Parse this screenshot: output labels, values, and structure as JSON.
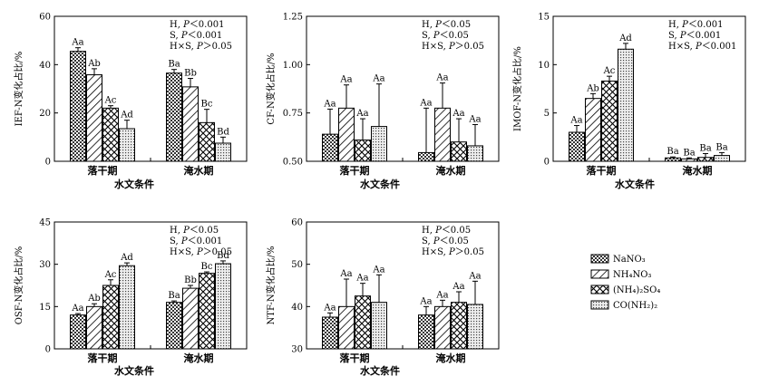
{
  "legend": [
    {
      "key": "nano3",
      "label": "NaNO₃",
      "pattern": "checker"
    },
    {
      "key": "nh4no3",
      "label": "NH₄NO₃",
      "pattern": "hatch"
    },
    {
      "key": "nh4so4",
      "label": "(NH₄)₂SO₄",
      "pattern": "cross"
    },
    {
      "key": "urea",
      "label": "CO(NH₂)₂",
      "pattern": "dots"
    }
  ],
  "chart_data": [
    {
      "type": "bar",
      "ylabel": "IEF-N变化占比/%",
      "xlabel": "水文条件",
      "categories": [
        "落干期",
        "淹水期"
      ],
      "ylim": [
        0,
        60
      ],
      "yticks": [
        0,
        20,
        40,
        60
      ],
      "stats": [
        "H, P＜0.001",
        "S, P＜0.001",
        "H×S, P＞0.05"
      ],
      "series": [
        {
          "values": [
            45.5,
            36.5
          ],
          "err": [
            1.5,
            1.5
          ],
          "labels": [
            "Aa",
            "Ba"
          ]
        },
        {
          "values": [
            35.8,
            30.8
          ],
          "err": [
            2.5,
            3.5
          ],
          "labels": [
            "Ab",
            "Bb"
          ]
        },
        {
          "values": [
            22.0,
            16.0
          ],
          "err": [
            1.0,
            5.5
          ],
          "labels": [
            "Ac",
            "Bc"
          ]
        },
        {
          "values": [
            13.5,
            7.5
          ],
          "err": [
            3.5,
            2.5
          ],
          "labels": [
            "Ad",
            "Bd"
          ]
        }
      ]
    },
    {
      "type": "bar",
      "ylabel": "CF-N变化占比/%",
      "xlabel": "水文条件",
      "categories": [
        "落干期",
        "淹水期"
      ],
      "ylim": [
        0.5,
        1.25
      ],
      "yticks": [
        0.5,
        0.75,
        1.0,
        1.25
      ],
      "yticklabels": [
        "0.50",
        "0.75",
        "1.00",
        "1.25"
      ],
      "stats": [
        "H, P＜0.05",
        "S, P＜0.05",
        "H×S, P＞0.05"
      ],
      "series": [
        {
          "values": [
            0.64,
            0.545
          ],
          "err": [
            0.13,
            0.23
          ],
          "labels": [
            "Aa",
            "Aa"
          ]
        },
        {
          "values": [
            0.775,
            0.775
          ],
          "err": [
            0.12,
            0.13
          ],
          "labels": [
            "Aa",
            "Aa"
          ]
        },
        {
          "values": [
            0.61,
            0.6
          ],
          "err": [
            0.11,
            0.12
          ],
          "labels": [
            "Aa",
            "Aa"
          ]
        },
        {
          "values": [
            0.68,
            0.58
          ],
          "err": [
            0.22,
            0.11
          ],
          "labels": [
            "Aa",
            "Aa"
          ]
        }
      ]
    },
    {
      "type": "bar",
      "ylabel": "IMOF-N变化占比/%",
      "xlabel": "水文条件",
      "categories": [
        "落干期",
        "淹水期"
      ],
      "ylim": [
        0,
        15
      ],
      "yticks": [
        0,
        5,
        10,
        15
      ],
      "stats": [
        "H, P＜0.001",
        "S, P＜0.001",
        "H×S, P＜0.001"
      ],
      "series": [
        {
          "values": [
            3.0,
            0.35
          ],
          "err": [
            0.7,
            0.1
          ],
          "labels": [
            "Aa",
            "Ba"
          ]
        },
        {
          "values": [
            6.5,
            0.25
          ],
          "err": [
            0.5,
            0.1
          ],
          "labels": [
            "Ab",
            "Ba"
          ]
        },
        {
          "values": [
            8.3,
            0.4
          ],
          "err": [
            0.5,
            0.4
          ],
          "labels": [
            "Ac",
            "Ba"
          ]
        },
        {
          "values": [
            11.6,
            0.6
          ],
          "err": [
            0.6,
            0.3
          ],
          "labels": [
            "Ad",
            "Ba"
          ]
        }
      ]
    },
    {
      "type": "bar",
      "ylabel": "OSF-N变化占比/%",
      "xlabel": "水文条件",
      "categories": [
        "落干期",
        "淹水期"
      ],
      "ylim": [
        0,
        45
      ],
      "yticks": [
        0,
        15,
        30,
        45
      ],
      "stats": [
        "H, P＜0.05",
        "S, P＜0.001",
        "H×S, P＞0.05"
      ],
      "series": [
        {
          "values": [
            12.0,
            16.5
          ],
          "err": [
            0.5,
            0.5
          ],
          "labels": [
            "Aa",
            "Ba"
          ]
        },
        {
          "values": [
            15.0,
            21.5
          ],
          "err": [
            1.0,
            1.0
          ],
          "labels": [
            "Ab",
            "Bb"
          ]
        },
        {
          "values": [
            22.5,
            26.8
          ],
          "err": [
            2.0,
            0.5
          ],
          "labels": [
            "Ac",
            "Bc"
          ]
        },
        {
          "values": [
            29.5,
            30.2
          ],
          "err": [
            1.0,
            1.0
          ],
          "labels": [
            "Ad",
            "Bd"
          ]
        }
      ]
    },
    {
      "type": "bar",
      "ylabel": "NTF-N变化占比/%",
      "xlabel": "水文条件",
      "categories": [
        "落干期",
        "淹水期"
      ],
      "ylim": [
        30,
        60
      ],
      "yticks": [
        30,
        40,
        50,
        60
      ],
      "stats": [
        "H, P＜0.05",
        "S, P＜0.05",
        "H×S, P＞0.05"
      ],
      "series": [
        {
          "values": [
            37.5,
            38.0
          ],
          "err": [
            1.0,
            2.0
          ],
          "labels": [
            "Aa",
            "Aa"
          ]
        },
        {
          "values": [
            40.0,
            40.0
          ],
          "err": [
            6.5,
            1.5
          ],
          "labels": [
            "Aa",
            "Aa"
          ]
        },
        {
          "values": [
            42.5,
            41.0
          ],
          "err": [
            3.0,
            2.5
          ],
          "labels": [
            "Aa",
            "Aa"
          ]
        },
        {
          "values": [
            41.0,
            40.5
          ],
          "err": [
            6.5,
            5.5
          ],
          "labels": [
            "Aa",
            "Aa"
          ]
        }
      ]
    }
  ]
}
